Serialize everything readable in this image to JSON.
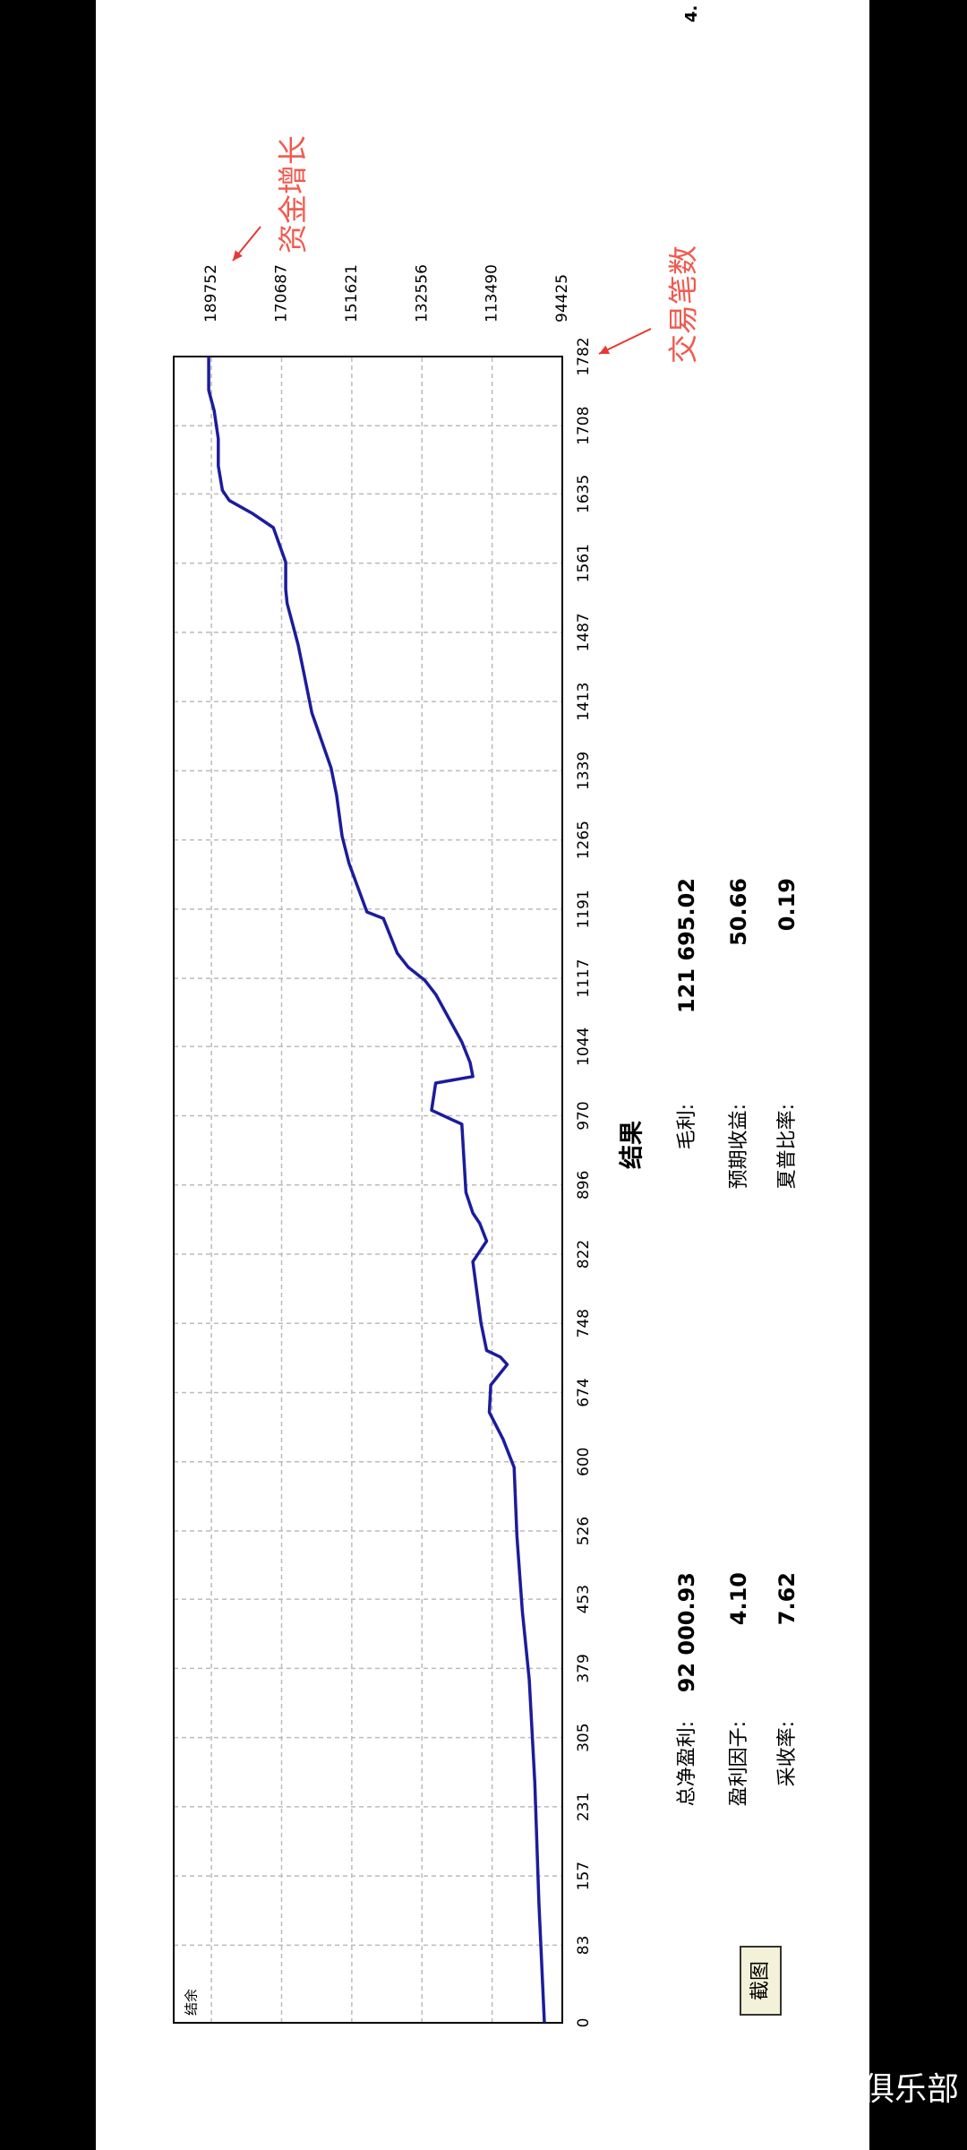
{
  "chart_data": {
    "type": "line",
    "y_label": "结余",
    "annotations": [
      "资金增长",
      "交易笔数"
    ],
    "x": [
      0,
      128,
      257,
      367,
      440,
      521,
      594,
      624,
      653,
      682,
      704,
      712,
      719,
      748,
      814,
      836,
      855,
      866,
      888,
      961,
      976,
      1005,
      1012,
      1027,
      1049,
      1100,
      1115,
      1129,
      1144,
      1181,
      1188,
      1240,
      1269,
      1313,
      1342,
      1401,
      1445,
      1474,
      1518,
      1533,
      1562,
      1599,
      1614,
      1628,
      1639,
      1665,
      1694,
      1724,
      1746,
      1782
    ],
    "series": [
      {
        "color": "#1c1c9c",
        "values": [
          99300,
          100780,
          101900,
          103400,
          105270,
          106760,
          107510,
          110500,
          114240,
          113860,
          109380,
          111250,
          114980,
          116480,
          118720,
          114980,
          116850,
          118720,
          120590,
          121710,
          129940,
          128820,
          118720,
          119470,
          121710,
          128820,
          131800,
          136290,
          139280,
          143020,
          147510,
          152370,
          154240,
          155740,
          157230,
          162460,
          164700,
          166200,
          169190,
          169560,
          169560,
          172920,
          178530,
          184890,
          186760,
          187880,
          187880,
          189000,
          190500,
          190500
        ]
      }
    ],
    "xlim": [
      0,
      1782
    ],
    "xticks": [
      0,
      83,
      157,
      231,
      305,
      379,
      453,
      526,
      600,
      674,
      748,
      822,
      896,
      970,
      1044,
      1117,
      1191,
      1265,
      1339,
      1413,
      1487,
      1561,
      1635,
      1708,
      1782
    ],
    "ylim": [
      94425,
      200000
    ],
    "yticks": [
      94425,
      113490,
      132556,
      151621,
      170687,
      189752
    ],
    "grid": true
  },
  "results": {
    "title": "结果",
    "rows": [
      [
        {
          "label": "总净盈利:",
          "value": "92 000.93"
        },
        {
          "label": "毛利:",
          "value": "121 695.02"
        }
      ],
      [
        {
          "label": "盈利因子:",
          "value": "4.10"
        },
        {
          "label": "预期收益:",
          "value": "50.66"
        }
      ],
      [
        {
          "label": "采收率:",
          "value": "7.62"
        },
        {
          "label": "夏普比率:",
          "value": "0.19"
        }
      ]
    ]
  },
  "button": "截图",
  "corner_text": "4.",
  "watermark": "@智能交易俱乐部"
}
